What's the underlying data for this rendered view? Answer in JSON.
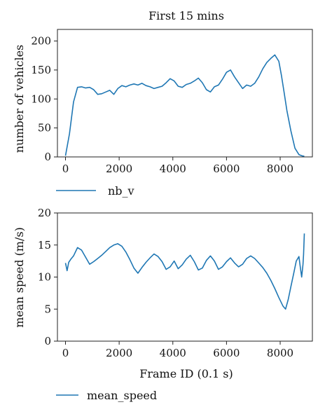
{
  "chart_data": [
    {
      "type": "line",
      "title": "First 15 mins",
      "xlabel": "",
      "ylabel": "number of vehicles",
      "xlim": [
        -300,
        9200
      ],
      "ylim": [
        0,
        220
      ],
      "xticks": [
        0,
        2000,
        4000,
        6000,
        8000
      ],
      "yticks": [
        0,
        50,
        100,
        150,
        200
      ],
      "grid": false,
      "legend": "below-left",
      "series": [
        {
          "name": "nb_v",
          "color": "#1f77b4",
          "x": [
            0,
            150,
            300,
            450,
            600,
            750,
            900,
            1050,
            1200,
            1350,
            1500,
            1650,
            1800,
            1950,
            2100,
            2250,
            2400,
            2550,
            2700,
            2850,
            3000,
            3150,
            3300,
            3450,
            3600,
            3750,
            3900,
            4050,
            4200,
            4350,
            4500,
            4650,
            4800,
            4950,
            5100,
            5250,
            5400,
            5550,
            5700,
            5850,
            6000,
            6150,
            6300,
            6450,
            6600,
            6750,
            6900,
            7050,
            7200,
            7350,
            7500,
            7650,
            7800,
            7950,
            8050,
            8150,
            8250,
            8400,
            8550,
            8700,
            8800,
            8900
          ],
          "values": [
            2,
            40,
            95,
            120,
            121,
            119,
            120,
            116,
            108,
            109,
            112,
            115,
            108,
            118,
            123,
            121,
            124,
            126,
            124,
            127,
            123,
            121,
            118,
            120,
            122,
            128,
            135,
            131,
            122,
            120,
            125,
            127,
            131,
            136,
            128,
            116,
            112,
            121,
            124,
            134,
            146,
            150,
            138,
            128,
            118,
            124,
            122,
            127,
            138,
            152,
            163,
            170,
            176,
            165,
            140,
            110,
            80,
            45,
            15,
            4,
            2,
            1
          ]
        }
      ]
    },
    {
      "type": "line",
      "title": "",
      "xlabel": "Frame ID (0.1 s)",
      "ylabel": "mean speed (m/s)",
      "xlim": [
        -300,
        9200
      ],
      "ylim": [
        0,
        20
      ],
      "xticks": [
        0,
        2000,
        4000,
        6000,
        8000
      ],
      "yticks": [
        0,
        5,
        10,
        15,
        20
      ],
      "grid": false,
      "legend": "below-left",
      "series": [
        {
          "name": "mean_speed",
          "color": "#1f77b4",
          "x": [
            0,
            60,
            120,
            200,
            300,
            450,
            600,
            750,
            900,
            1050,
            1200,
            1350,
            1500,
            1650,
            1800,
            1950,
            2100,
            2250,
            2400,
            2550,
            2700,
            2850,
            3000,
            3150,
            3300,
            3450,
            3600,
            3750,
            3900,
            4050,
            4200,
            4350,
            4500,
            4650,
            4800,
            4950,
            5100,
            5250,
            5400,
            5550,
            5700,
            5850,
            6000,
            6150,
            6300,
            6450,
            6600,
            6750,
            6900,
            7050,
            7200,
            7350,
            7500,
            7650,
            7800,
            7950,
            8100,
            8200,
            8300,
            8400,
            8500,
            8600,
            8700,
            8750,
            8800,
            8850,
            8870,
            8900
          ],
          "values": [
            12.2,
            11.0,
            12.3,
            12.8,
            13.3,
            14.6,
            14.2,
            13.1,
            12.0,
            12.4,
            12.9,
            13.4,
            14.0,
            14.6,
            15.0,
            15.2,
            14.8,
            13.9,
            12.7,
            11.4,
            10.6,
            11.5,
            12.3,
            13.0,
            13.6,
            13.2,
            12.4,
            11.2,
            11.6,
            12.5,
            11.3,
            11.9,
            12.8,
            13.4,
            12.4,
            11.1,
            11.4,
            12.6,
            13.3,
            12.5,
            11.2,
            11.6,
            12.4,
            13.0,
            12.2,
            11.6,
            12.0,
            12.9,
            13.3,
            12.9,
            12.2,
            11.5,
            10.6,
            9.5,
            8.2,
            6.8,
            5.5,
            5.0,
            6.5,
            8.5,
            10.5,
            12.5,
            13.2,
            11.5,
            10.0,
            12.0,
            13.5,
            16.8
          ]
        }
      ]
    }
  ]
}
